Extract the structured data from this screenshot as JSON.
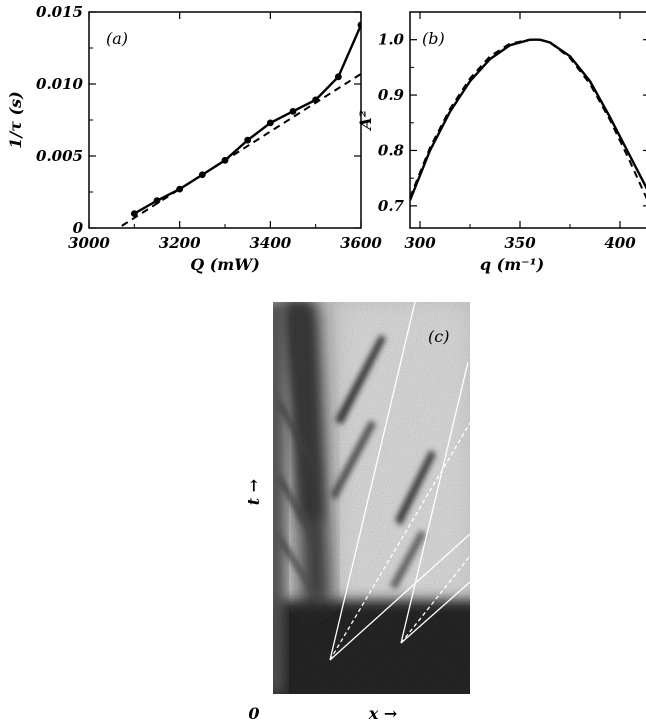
{
  "chart_data": [
    {
      "panel_label": "(a)",
      "type": "line",
      "xlabel": "Q (mW)",
      "ylabel": "1/τ (s)",
      "xlim": [
        3000,
        3600
      ],
      "ylim": [
        0,
        0.015
      ],
      "xticks": [
        3000,
        3200,
        3400,
        3600
      ],
      "xtick_labels": [
        "3000",
        "3200",
        "3400",
        "3600"
      ],
      "yticks": [
        0,
        0.005,
        0.01,
        0.015
      ],
      "ytick_labels": [
        "0",
        "0.005",
        "0.010",
        "0.015"
      ],
      "grid": false,
      "series": [
        {
          "style": "solid-markers",
          "x": [
            3100,
            3150,
            3200,
            3250,
            3300,
            3350,
            3400,
            3450,
            3500,
            3550,
            3600
          ],
          "y": [
            0.001,
            0.0019,
            0.0027,
            0.0037,
            0.0047,
            0.0061,
            0.0073,
            0.0081,
            0.0089,
            0.0105,
            0.0141
          ]
        },
        {
          "style": "dashed",
          "x": [
            3050,
            3600
          ],
          "y": [
            -0.0003,
            0.0107
          ]
        }
      ]
    },
    {
      "panel_label": "(b)",
      "type": "line",
      "xlabel": "q (m⁻¹)",
      "ylabel": "A²",
      "xlim": [
        295,
        415
      ],
      "ylim": [
        0.66,
        1.05
      ],
      "xticks": [
        300,
        350,
        400
      ],
      "xtick_labels": [
        "300",
        "350",
        "400"
      ],
      "yticks": [
        0.7,
        0.8,
        0.9,
        1.0
      ],
      "ytick_labels": [
        "0.7",
        "0.8",
        "0.9",
        "1.0"
      ],
      "grid": false,
      "series": [
        {
          "style": "solid",
          "x": [
            295,
            305,
            315,
            325,
            335,
            345,
            355,
            360,
            365,
            375,
            385,
            395,
            405,
            415
          ],
          "y": [
            0.71,
            0.8,
            0.87,
            0.925,
            0.965,
            0.99,
            1.0,
            1.0,
            0.995,
            0.97,
            0.925,
            0.86,
            0.79,
            0.72
          ]
        },
        {
          "style": "dashed",
          "x": [
            295,
            305,
            315,
            325,
            335,
            345,
            355,
            360,
            365,
            375,
            385,
            395,
            405,
            415
          ],
          "y": [
            0.715,
            0.805,
            0.875,
            0.93,
            0.97,
            0.993,
            1.0,
            1.0,
            0.995,
            0.967,
            0.92,
            0.855,
            0.78,
            0.7
          ]
        }
      ]
    },
    {
      "panel_label": "(c)",
      "type": "heatmap",
      "xlabel": "x →",
      "ylabel": "t →",
      "origin_label": "0"
    }
  ]
}
